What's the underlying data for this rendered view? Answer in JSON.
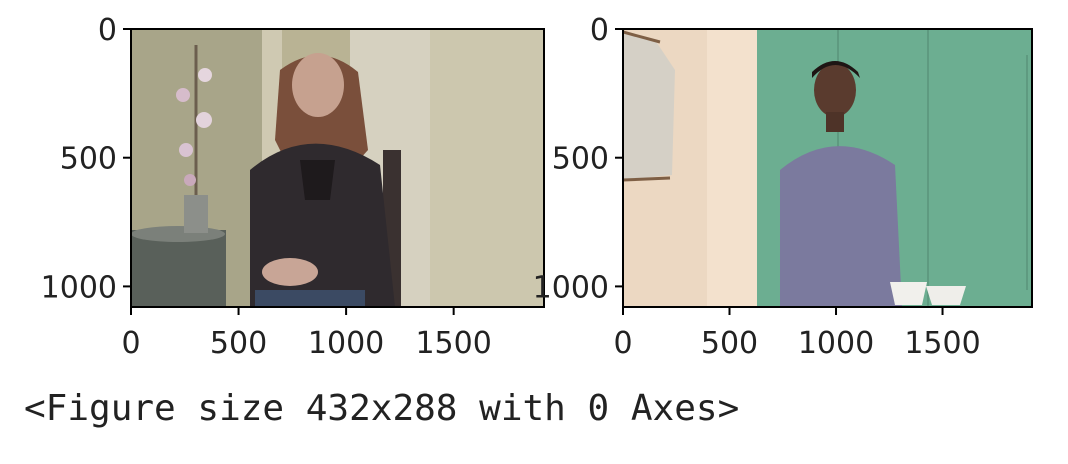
{
  "chart_data": [
    {
      "type": "image",
      "subject": "woman with long brown hair in dark leather jacket seated indoors beside side table with orchid vase",
      "xlim": [
        0,
        1920
      ],
      "ylim": [
        1080,
        0
      ],
      "xticks": [
        0,
        500,
        1000,
        1500
      ],
      "xtick_labels": [
        "0",
        "500",
        "1000",
        "1500"
      ],
      "yticks": [
        0,
        500,
        1000
      ],
      "ytick_labels": [
        "0",
        "500",
        "1000"
      ],
      "colors": {
        "wall": "#b9b394",
        "door": "#d8d3c2",
        "jacket": "#2f2a2e",
        "skin": "#c6a18f",
        "table": "#59605a"
      }
    },
    {
      "type": "image",
      "subject": "woman in lavender sweater standing against green wall with paper bowls",
      "xlim": [
        0,
        1920
      ],
      "ylim": [
        1080,
        0
      ],
      "xticks": [
        0,
        500,
        1000,
        1500
      ],
      "xtick_labels": [
        "0",
        "500",
        "1000",
        "1500"
      ],
      "yticks": [
        0,
        500,
        1000
      ],
      "ytick_labels": [
        "0",
        "500",
        "1000"
      ],
      "colors": {
        "wall": "#6cae91",
        "left_wall": "#ecd8c2",
        "sweater": "#7b7a9e",
        "skin": "#5a3b2e"
      }
    }
  ],
  "caption": "<Figure size 432x288 with 0 Axes>"
}
